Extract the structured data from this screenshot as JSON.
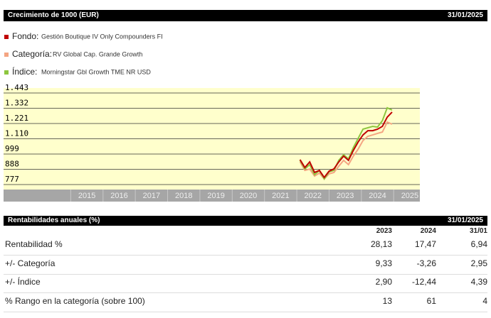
{
  "header": {
    "title": "Crecimiento de 1000 (EUR)",
    "date": "31/01/2025"
  },
  "legend": [
    {
      "label": "Fondo:",
      "name": "Gestión Boutique IV Only Compounders FI"
    },
    {
      "label": "Categoría:",
      "name": "RV Global Cap. Grande Growth"
    },
    {
      "label": "Índice:",
      "name": "Morningstar Gbl Growth TME NR USD"
    }
  ],
  "chart_data": {
    "type": "line",
    "x": [
      2021.6,
      2021.75,
      2021.9,
      2022.05,
      2022.2,
      2022.35,
      2022.5,
      2022.65,
      2022.8,
      2022.95,
      2023.1,
      2023.25,
      2023.4,
      2023.55,
      2023.7,
      2023.85,
      2024.0,
      2024.15,
      2024.3,
      2024.45
    ],
    "series": [
      {
        "name": "Fondo",
        "color": "#c00000",
        "values": [
          958,
          901,
          942,
          865,
          880,
          829,
          875,
          891,
          942,
          984,
          953,
          1025,
          1087,
          1138,
          1169,
          1169,
          1180,
          1200,
          1267,
          1304
        ]
      },
      {
        "name": "Categoría",
        "color": "#f4a582",
        "values": [
          942,
          880,
          890,
          839,
          860,
          818,
          855,
          865,
          911,
          953,
          922,
          984,
          1035,
          1097,
          1128,
          1138,
          1149,
          1159,
          1231,
          1216
        ]
      },
      {
        "name": "Índice",
        "color": "#8dc63f",
        "values": [
          953,
          891,
          922,
          849,
          880,
          818,
          870,
          880,
          953,
          994,
          963,
          1045,
          1113,
          1180,
          1190,
          1200,
          1195,
          1242,
          1335,
          1319
        ]
      }
    ],
    "xlim": [
      2012.42,
      2025.31
    ],
    "xticks": [
      2015,
      2016,
      2017,
      2018,
      2019,
      2020,
      2021,
      2022,
      2023,
      2024,
      2025
    ],
    "ylim": [
      741,
      1479
    ],
    "yticks": [
      777,
      888,
      999,
      {
        "value": 1110,
        "label": "1.110"
      },
      {
        "value": 1221,
        "label": "1.221"
      },
      {
        "value": 1332,
        "label": "1.332"
      },
      {
        "value": 1443,
        "label": "1.443"
      }
    ],
    "grid": true
  },
  "table": {
    "title": "Rentabilidades anuales (%)",
    "date": "31/01/2025",
    "columns": [
      "2023",
      "2024",
      "31/01"
    ],
    "rows": [
      {
        "label": "Rentabilidad %",
        "values": [
          "28,13",
          "17,47",
          "6,94"
        ]
      },
      {
        "label": "+/- Categoría",
        "values": [
          "9,33",
          "-3,26",
          "2,95"
        ]
      },
      {
        "label": "+/- Índice",
        "values": [
          "2,90",
          "-12,44",
          "4,39"
        ]
      },
      {
        "label": "% Rango en la categoría (sobre 100)",
        "values": [
          "13",
          "61",
          "4"
        ]
      }
    ]
  }
}
